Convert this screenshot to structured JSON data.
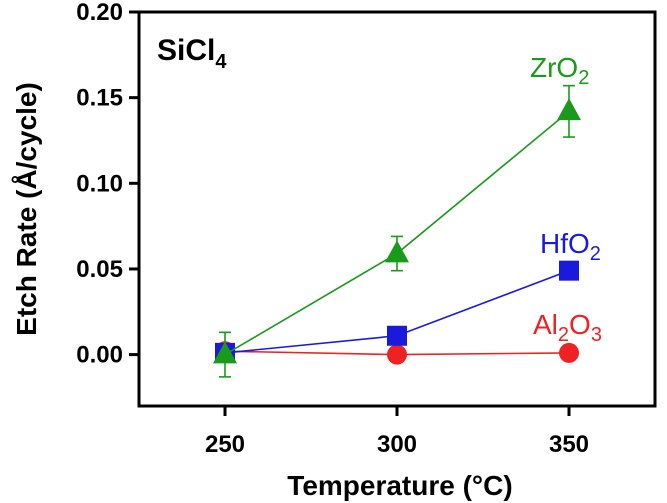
{
  "chart_data": {
    "type": "line",
    "panel_label": {
      "main": "SiCl",
      "sub": "4"
    },
    "xlabel": "Temperature (°C)",
    "ylabel": "Etch Rate (Å/cycle)",
    "x": [
      250,
      300,
      350
    ],
    "xlim": [
      225,
      375
    ],
    "ylim": [
      -0.03,
      0.2
    ],
    "xticks": [
      "250",
      "300",
      "350"
    ],
    "yticks": [
      "0.00",
      "0.05",
      "0.10",
      "0.15",
      "0.20"
    ],
    "xtick_values": [
      250,
      300,
      350
    ],
    "ytick_values": [
      0.0,
      0.05,
      0.1,
      0.15,
      0.2
    ],
    "grid": false,
    "legend": "inline-labels",
    "series": [
      {
        "key": "zro2",
        "label_main": "ZrO",
        "label_sub": "2",
        "label_tail": "",
        "color": "#1a9a1a",
        "marker": "triangle",
        "values": [
          0.0,
          0.059,
          0.142
        ],
        "errors": [
          0.013,
          0.01,
          0.015
        ]
      },
      {
        "key": "hfo2",
        "label_main": "HfO",
        "label_sub": "2",
        "label_tail": "",
        "color": "#1a1add",
        "marker": "square",
        "values": [
          0.001,
          0.011,
          0.049
        ],
        "errors": [
          0,
          0,
          0
        ]
      },
      {
        "key": "al2o3",
        "label_main": "Al",
        "label_sub": "2",
        "label_tail": "O",
        "label_sub2": "3",
        "color": "#ee2222",
        "marker": "circle",
        "values": [
          0.002,
          0.0,
          0.001
        ],
        "errors": [
          0,
          0,
          0
        ]
      }
    ]
  }
}
